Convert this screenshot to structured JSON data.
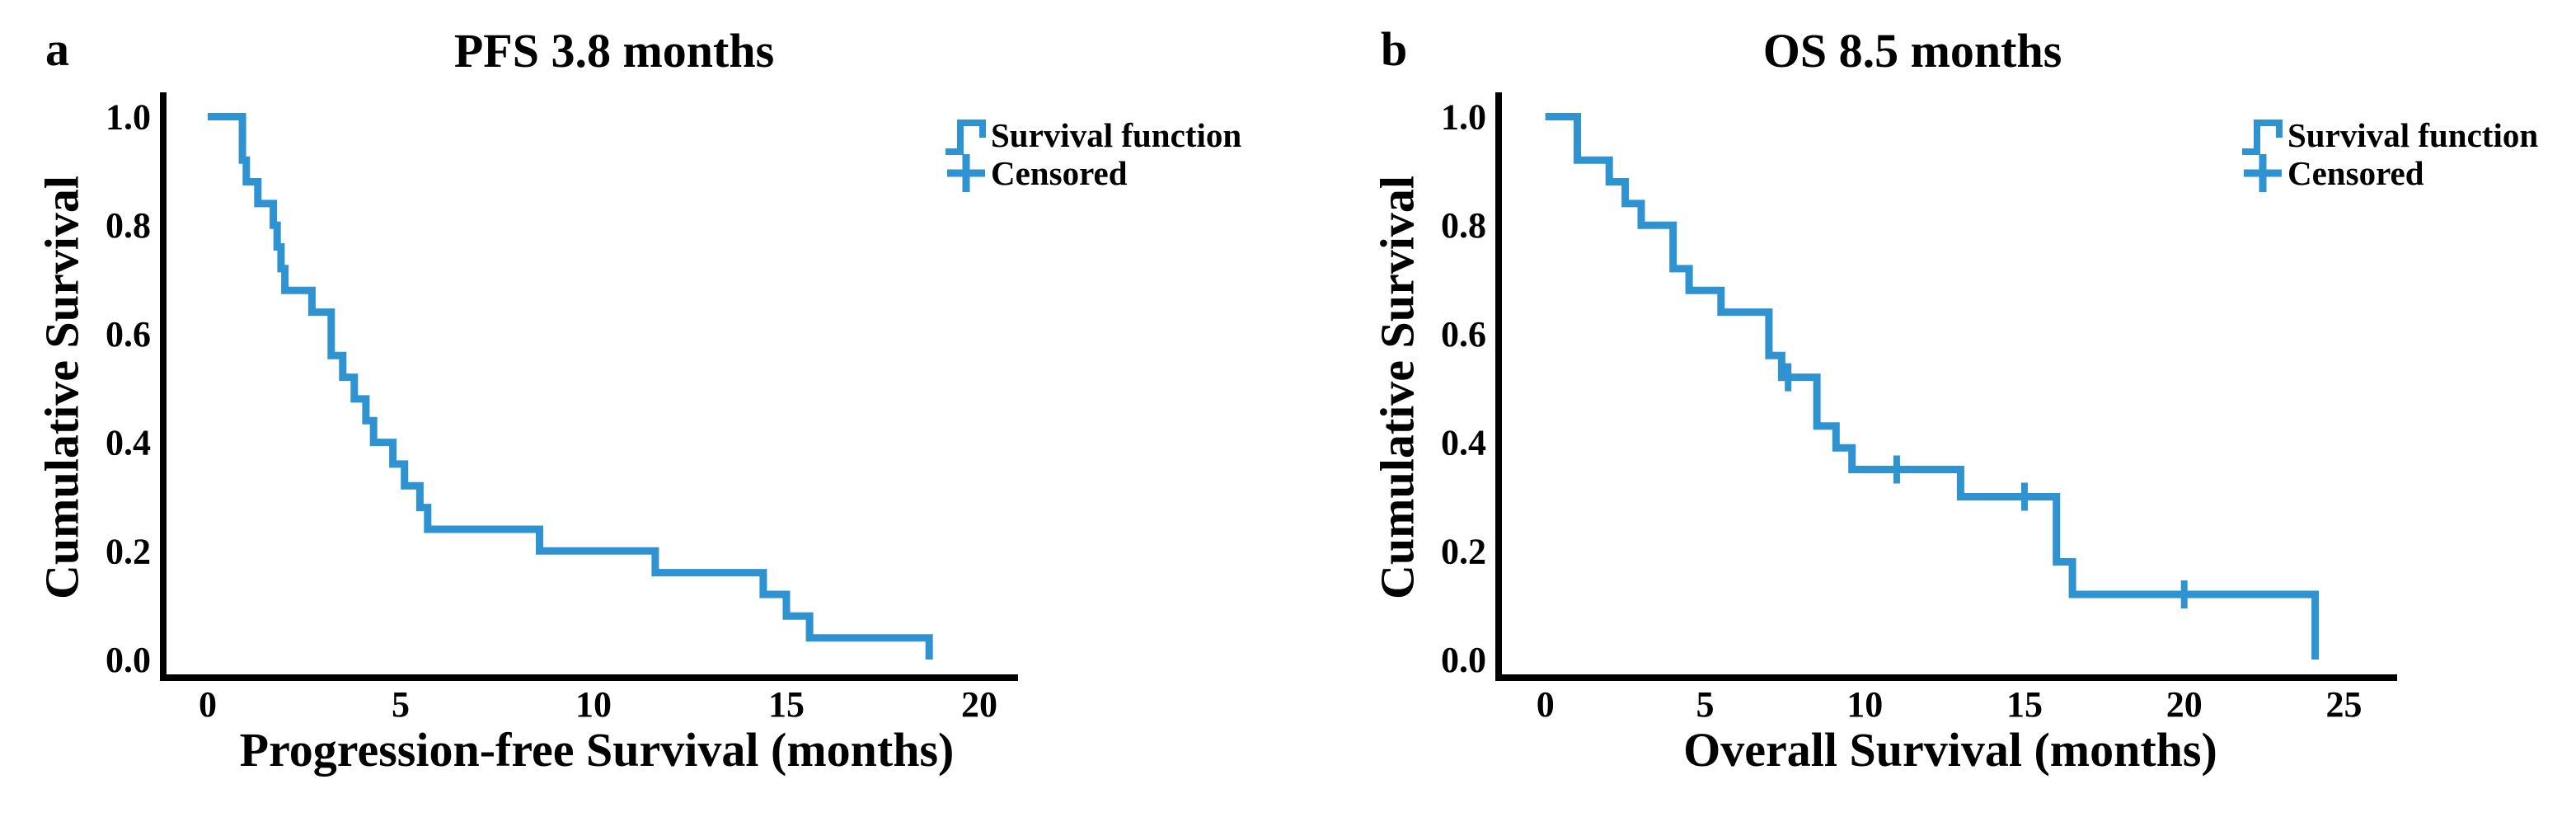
{
  "figure": {
    "background": "#ffffff",
    "text_color": "#000000",
    "accent_color": "#2E93D0"
  },
  "chart_data": [
    {
      "type": "line",
      "subtype": "kaplan_meier_step",
      "panel_letter": "a",
      "title": "PFS 3.8 months",
      "median_months": 3.8,
      "xlabel": "Progression-free Survival (months)",
      "ylabel": "Cumulative Survival",
      "xlim": [
        0,
        20
      ],
      "ylim": [
        0.0,
        1.0
      ],
      "x_ticks": [
        "0",
        "5",
        "10",
        "15",
        "20"
      ],
      "y_ticks": [
        "1.0",
        "0.8",
        "0.6",
        "0.4",
        "0.2",
        "0.0"
      ],
      "grid": false,
      "legend": [
        "Survival function",
        "Censored"
      ],
      "legend_position": "upper right",
      "steps": [
        [
          0,
          1.0
        ],
        [
          0.9,
          0.92
        ],
        [
          1.0,
          0.88
        ],
        [
          1.3,
          0.84
        ],
        [
          1.7,
          0.8
        ],
        [
          1.8,
          0.76
        ],
        [
          1.9,
          0.72
        ],
        [
          2.0,
          0.68
        ],
        [
          2.7,
          0.64
        ],
        [
          3.2,
          0.56
        ],
        [
          3.5,
          0.52
        ],
        [
          3.8,
          0.48
        ],
        [
          4.1,
          0.44
        ],
        [
          4.3,
          0.4
        ],
        [
          4.8,
          0.36
        ],
        [
          5.1,
          0.32
        ],
        [
          5.5,
          0.28
        ],
        [
          5.7,
          0.24
        ],
        [
          8.6,
          0.2
        ],
        [
          11.6,
          0.16
        ],
        [
          14.4,
          0.12
        ],
        [
          15.0,
          0.08
        ],
        [
          15.6,
          0.04
        ],
        [
          18.7,
          0.0
        ]
      ],
      "censored": []
    },
    {
      "type": "line",
      "subtype": "kaplan_meier_step",
      "panel_letter": "b",
      "title": "OS 8.5 months",
      "median_months": 8.5,
      "xlabel": "Overall Survival (months)",
      "ylabel": "Cumulative Survival",
      "xlim": [
        0,
        25
      ],
      "ylim": [
        0.0,
        1.0
      ],
      "x_ticks": [
        "0",
        "5",
        "10",
        "15",
        "20",
        "25"
      ],
      "y_ticks": [
        "1.0",
        "0.8",
        "0.6",
        "0.4",
        "0.2",
        "0.0"
      ],
      "grid": false,
      "legend": [
        "Survival function",
        "Censored"
      ],
      "legend_position": "upper right",
      "steps": [
        [
          0,
          1.0
        ],
        [
          1.0,
          0.92
        ],
        [
          2.0,
          0.88
        ],
        [
          2.5,
          0.84
        ],
        [
          3.0,
          0.8
        ],
        [
          4.0,
          0.72
        ],
        [
          4.5,
          0.68
        ],
        [
          5.5,
          0.64
        ],
        [
          7.0,
          0.56
        ],
        [
          7.4,
          0.52
        ],
        [
          8.5,
          0.43
        ],
        [
          9.1,
          0.39
        ],
        [
          9.6,
          0.35
        ],
        [
          13.0,
          0.3
        ],
        [
          16.0,
          0.18
        ],
        [
          16.5,
          0.12
        ],
        [
          24.1,
          0.0
        ]
      ],
      "censored": [
        [
          7.6,
          0.52
        ],
        [
          11.0,
          0.35
        ],
        [
          15.0,
          0.3
        ],
        [
          20.0,
          0.12
        ]
      ]
    }
  ]
}
